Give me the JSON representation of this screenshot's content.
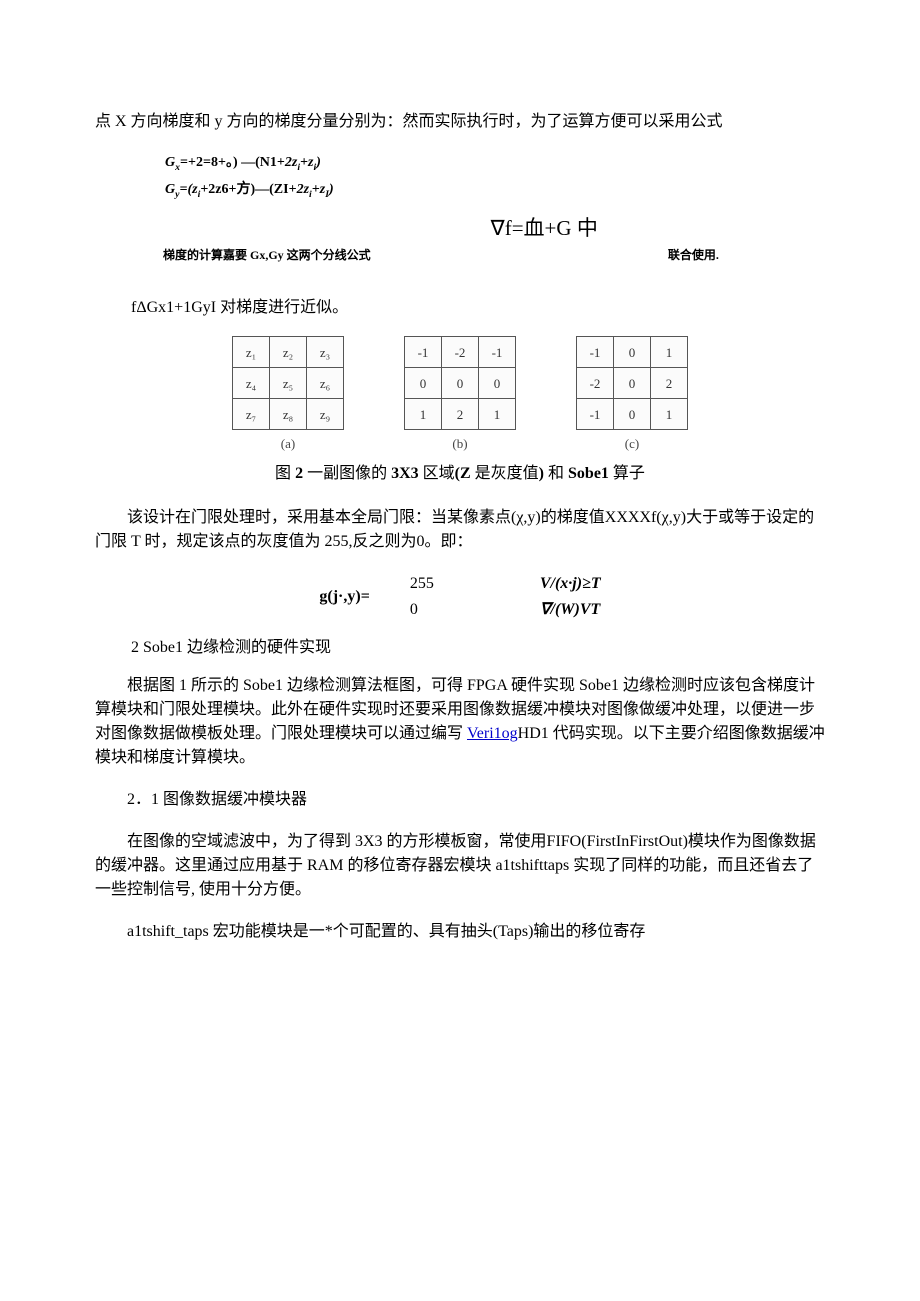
{
  "text": {
    "p1": "点 X 方向梯度和 y 方向的梯度分量分别为：然而实际执行时，为了运算方便可以采用公式",
    "gx": "G",
    "gx_sub": "x",
    "gx_rest": "=+2=8+。) —(N1+",
    "gx_tail": "2z",
    "gx_sub2": "i",
    "gx_tail2": "+z",
    "gx_sub3": "i",
    "gx_close": ")",
    "gy": "G",
    "gy_sub": "y",
    "gy_rest": "=(z",
    "gy_sub2": "i",
    "gy_mid": "+2z6+方)—(ZI+",
    "gy_tail": "2z",
    "gy_sub3": "i",
    "gy_tail2": "+z",
    "gy_sub4": "I",
    "gy_close": ")",
    "grad_expr": "∇f=血+G 中",
    "grad_left": "梯度的计算嘉要 Gx,Gy 这两个分线公式",
    "grad_right": "联合使用.",
    "approx": "fΔGx1+1GyI 对梯度进行近似。",
    "caption_pre": "图 ",
    "caption_b1": "2",
    "caption_mid": " 一副图像的 ",
    "caption_b2": "3X3",
    "caption_mid2": " 区域",
    "caption_b3": "(Z",
    "caption_mid3": " 是灰度值",
    "caption_b4": ")",
    "caption_mid4": " 和 ",
    "caption_b5": "Sobe1",
    "caption_end": " 算子",
    "p2": "该设计在门限处理时，采用基本全局门限：当某像素点(χ,y)的梯度值XXXXf(χ,y)大于或等于设定的门限 T 时，规定该点的灰度值为 255,反之则为0。即：",
    "eq_lhs": "g(j·,y)=",
    "eq_v1": "255",
    "eq_c1": "V/(x·j)≥T",
    "eq_v2": "0",
    "eq_c2": "∇/(W)VT",
    "sec2": "2   Sobe1 边缘检测的硬件实现",
    "p3a": "根据图 1 所示的 Sobe1 边缘检测算法框图，可得 FPGA 硬件实现 Sobe1 边缘检测时应该包含梯度计算模块和门限处理模块。此外在硬件实现时还要采用图像数据缓冲模块对图像做缓冲处理，以便进一步对图像数据做模板处理。门限处理模块可以通过编写 ",
    "link": "Veri1og",
    "p3b": "HD1 代码实现。以下主要介绍图像数据缓冲模块和梯度计算模块。",
    "sec21": "2．1 图像数据缓冲模块器",
    "p4": "在图像的空域滤波中，为了得到 3X3 的方形模板窗，常使用FIFO(FirstInFirstOut)模块作为图像数据的缓冲器。这里通过应用基于 RAM 的移位寄存器宏模块 a1tshifttaps 实现了同样的功能，而且还省去了一些控制信号, 使用十分方便。",
    "p5": "a1tshift_taps 宏功能模块是一*个可配置的、具有抽头(Taps)输出的移位寄存"
  },
  "kernels": {
    "labels": [
      "(a)",
      "(b)",
      "(c)"
    ],
    "a": [
      [
        "z₁",
        "z₂",
        "z₃"
      ],
      [
        "z₄",
        "z₅",
        "z₆"
      ],
      [
        "z₇",
        "z₈",
        "z₉"
      ]
    ],
    "b": [
      [
        "-1",
        "-2",
        "-1"
      ],
      [
        "0",
        "0",
        "0"
      ],
      [
        "1",
        "2",
        "1"
      ]
    ],
    "c": [
      [
        "-1",
        "0",
        "1"
      ],
      [
        "-2",
        "0",
        "2"
      ],
      [
        "-1",
        "0",
        "1"
      ]
    ]
  },
  "colors": {
    "link": "#0000cc",
    "text": "#000000",
    "cell_border": "#555555",
    "cell_text": "#333333"
  }
}
